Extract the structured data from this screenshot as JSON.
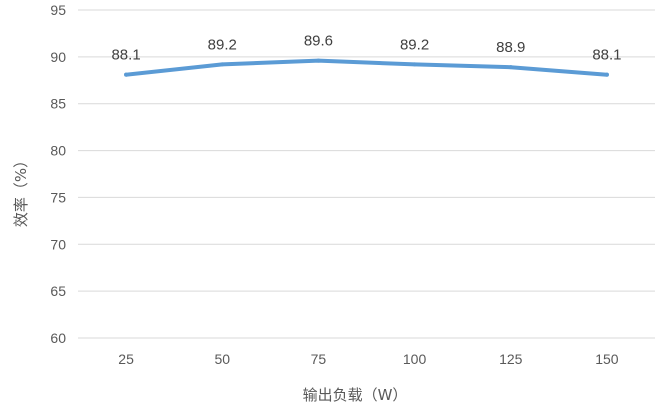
{
  "chart_data": {
    "type": "line",
    "title": "",
    "xlabel": "输出负载（W）",
    "ylabel": "效率（%）",
    "categories": [
      "25",
      "50",
      "75",
      "100",
      "125",
      "150"
    ],
    "series": [
      {
        "values": [
          88.1,
          89.2,
          89.6,
          89.2,
          88.9,
          88.1
        ],
        "color": "#5b9bd5"
      }
    ],
    "data_labels": [
      "88.1",
      "89.2",
      "89.6",
      "89.2",
      "88.9",
      "88.1"
    ],
    "ylim": [
      60,
      95
    ],
    "yticks": [
      "60",
      "65",
      "70",
      "75",
      "80",
      "85",
      "90",
      "95"
    ],
    "grid": true,
    "legend": "none",
    "gridline_color": "#d9d9d9"
  }
}
